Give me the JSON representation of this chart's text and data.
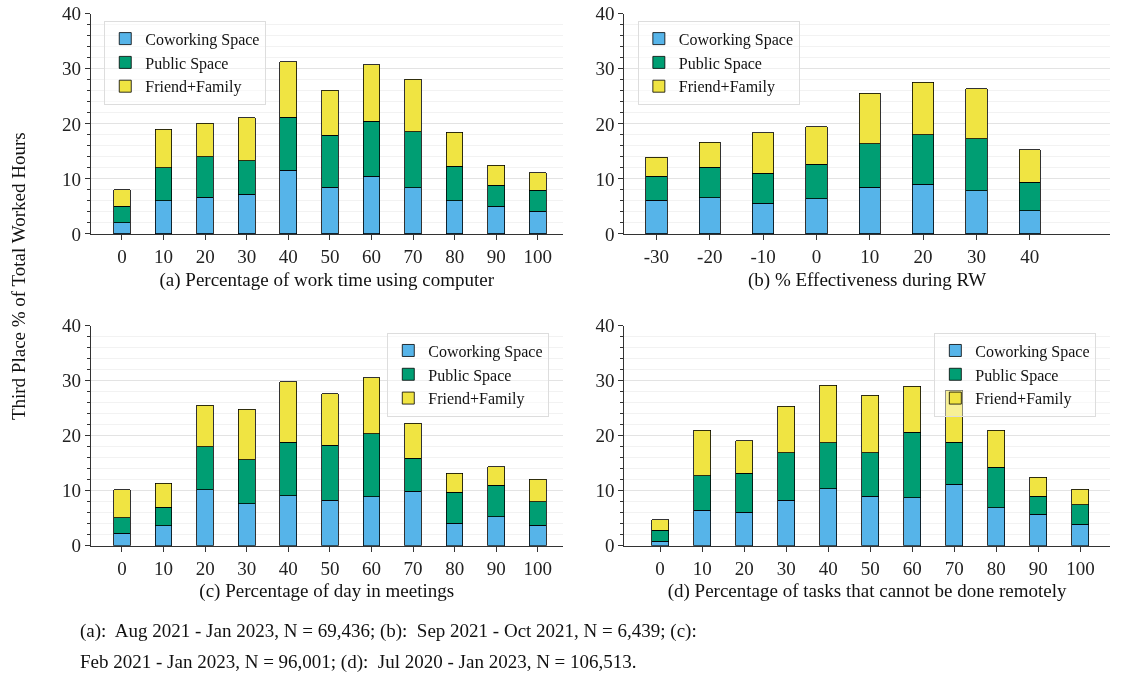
{
  "chart_data": [
    {
      "type": "bar",
      "stacked": true,
      "xlabel": "(a) Percentage of work time using computer",
      "ylabel": "Third Place % of Total Worked Hours",
      "x": [
        0,
        10,
        20,
        30,
        40,
        50,
        60,
        70,
        80,
        90,
        100
      ],
      "xlim": [
        -7.5,
        106
      ],
      "xticks": [
        0,
        10,
        20,
        30,
        40,
        50,
        60,
        70,
        80,
        90,
        100
      ],
      "ylim": [
        0,
        40
      ],
      "yticks": [
        0,
        10,
        20,
        30,
        40
      ],
      "grid": "y",
      "legend": "top left",
      "series": [
        {
          "name": "Coworking Space",
          "color": "#56b4e9",
          "values": [
            2.0,
            6.0,
            6.7,
            7.2,
            11.6,
            8.5,
            10.5,
            8.4,
            6.0,
            5.0,
            4.1
          ]
        },
        {
          "name": "Public Space",
          "color": "#009e73",
          "values": [
            3.0,
            6.0,
            7.3,
            6.1,
            9.6,
            9.4,
            10.0,
            10.2,
            6.3,
            3.8,
            3.8
          ]
        },
        {
          "name": "Friend+Family",
          "color": "#f0e442",
          "values": [
            3.0,
            7.0,
            6.1,
            7.8,
            10.1,
            8.2,
            10.2,
            9.5,
            6.2,
            3.7,
            3.2
          ]
        }
      ]
    },
    {
      "type": "bar",
      "stacked": true,
      "xlabel": "(b) % Effectiveness during RW",
      "x": [
        -30,
        -20,
        -10,
        0,
        10,
        20,
        30,
        40
      ],
      "xlim": [
        -36,
        55
      ],
      "xticks": [
        -30,
        -20,
        -10,
        0,
        10,
        20,
        30,
        40
      ],
      "ylim": [
        0,
        40
      ],
      "yticks": [
        0,
        10,
        20,
        30,
        40
      ],
      "grid": "y",
      "legend": "top left",
      "series": [
        {
          "name": "Coworking Space",
          "color": "#56b4e9",
          "values": [
            6.1,
            6.6,
            5.6,
            6.4,
            8.5,
            9.0,
            7.8,
            4.2
          ]
        },
        {
          "name": "Public Space",
          "color": "#009e73",
          "values": [
            4.4,
            5.5,
            5.4,
            6.3,
            7.9,
            9.0,
            9.5,
            5.2
          ]
        },
        {
          "name": "Friend+Family",
          "color": "#f0e442",
          "values": [
            3.4,
            4.6,
            7.4,
            6.8,
            9.2,
            9.6,
            9.1,
            5.9
          ]
        }
      ]
    },
    {
      "type": "bar",
      "stacked": true,
      "xlabel": "(c) Percentage of day in meetings",
      "x": [
        0,
        10,
        20,
        30,
        40,
        50,
        60,
        70,
        80,
        90,
        100
      ],
      "xlim": [
        -7.5,
        106
      ],
      "xticks": [
        0,
        10,
        20,
        30,
        40,
        50,
        60,
        70,
        80,
        90,
        100
      ],
      "ylim": [
        0,
        40
      ],
      "yticks": [
        0,
        10,
        20,
        30,
        40
      ],
      "grid": "y",
      "legend": "top right",
      "series": [
        {
          "name": "Coworking Space",
          "color": "#56b4e9",
          "values": [
            2.3,
            3.6,
            10.2,
            7.6,
            9.1,
            8.3,
            8.9,
            9.9,
            4.1,
            5.3,
            3.7
          ]
        },
        {
          "name": "Public Space",
          "color": "#009e73",
          "values": [
            2.8,
            3.4,
            7.8,
            8.0,
            9.7,
            10.0,
            11.5,
            6.0,
            5.6,
            5.7,
            4.3
          ]
        },
        {
          "name": "Friend+Family",
          "color": "#f0e442",
          "values": [
            5.1,
            4.4,
            7.5,
            9.2,
            11.0,
            9.3,
            10.1,
            6.4,
            3.5,
            3.4,
            4.1
          ]
        }
      ]
    },
    {
      "type": "bar",
      "stacked": true,
      "xlabel": "(d) Percentage of tasks that cannot be done remotely",
      "x": [
        0,
        10,
        20,
        30,
        40,
        50,
        60,
        70,
        80,
        90,
        100
      ],
      "xlim": [
        -8.5,
        107
      ],
      "xticks": [
        0,
        10,
        20,
        30,
        40,
        50,
        60,
        70,
        80,
        90,
        100
      ],
      "ylim": [
        0,
        40
      ],
      "yticks": [
        0,
        10,
        20,
        30,
        40
      ],
      "grid": "y",
      "legend": "top right",
      "annotations": [
        "(a):  Aug 2021 - Jan 2023, N = 69,436; (b):  Sep 2021 - Oct 2021, N = 6,439; (c):",
        "Feb 2021 - Jan 2023, N = 96,001; (d):  Jul 2020 - Jan 2023, N = 106,513."
      ],
      "series": [
        {
          "name": "Coworking Space",
          "color": "#56b4e9",
          "values": [
            0.8,
            6.5,
            6.1,
            8.3,
            10.4,
            9.0,
            8.7,
            11.2,
            6.9,
            5.7,
            3.9
          ]
        },
        {
          "name": "Public Space",
          "color": "#009e73",
          "values": [
            2.0,
            6.2,
            7.1,
            8.6,
            8.3,
            7.9,
            11.9,
            7.6,
            7.4,
            3.3,
            3.6
          ]
        },
        {
          "name": "Friend+Family",
          "color": "#f0e442",
          "values": [
            1.9,
            8.3,
            5.9,
            8.5,
            10.5,
            10.5,
            8.4,
            9.5,
            6.7,
            3.5,
            2.8
          ]
        }
      ]
    }
  ]
}
